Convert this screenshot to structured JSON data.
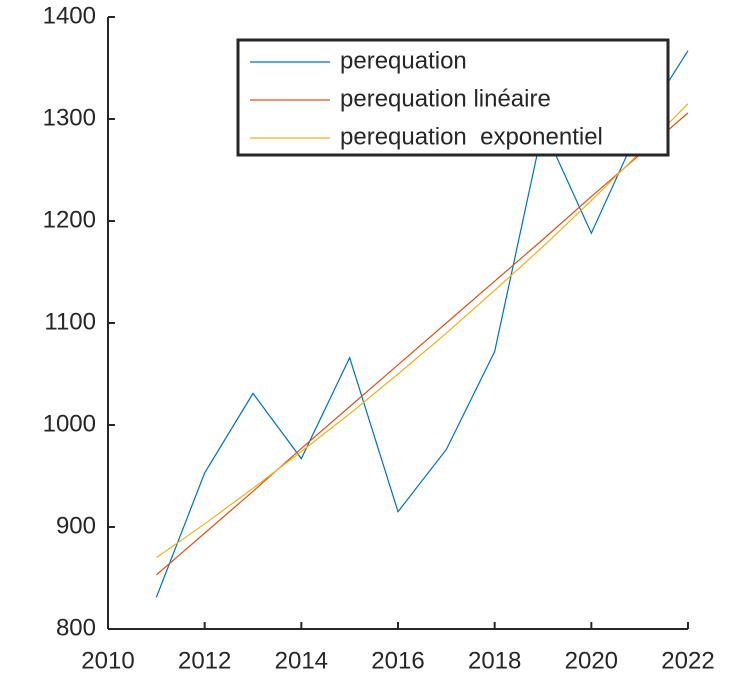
{
  "chart_data": {
    "type": "line",
    "x": [
      2011,
      2012,
      2013,
      2014,
      2015,
      2016,
      2017,
      2018,
      2019,
      2020,
      2021,
      2022
    ],
    "series": [
      {
        "name": "perequation",
        "color": "#0072BD",
        "values": [
          831,
          953,
          1031,
          967,
          1066,
          915,
          976,
          1072,
          1292,
          1188,
          1292,
          1367
        ]
      },
      {
        "name": "perequation linéaire",
        "color": "#D95319",
        "values": [
          853,
          894,
          935,
          977,
          1018,
          1059,
          1100,
          1141,
          1182,
          1224,
          1265,
          1306
        ]
      },
      {
        "name": "perequation  exponentiel",
        "color": "#EDB120",
        "values": [
          870,
          903,
          938,
          974,
          1011,
          1050,
          1090,
          1132,
          1175,
          1220,
          1267,
          1315
        ]
      }
    ],
    "xlim": [
      2010,
      2022
    ],
    "xticks": [
      2010,
      2012,
      2014,
      2016,
      2018,
      2020,
      2022
    ],
    "ylim": [
      800,
      1400
    ],
    "yticks": [
      800,
      900,
      1000,
      1100,
      1200,
      1300,
      1400
    ]
  }
}
